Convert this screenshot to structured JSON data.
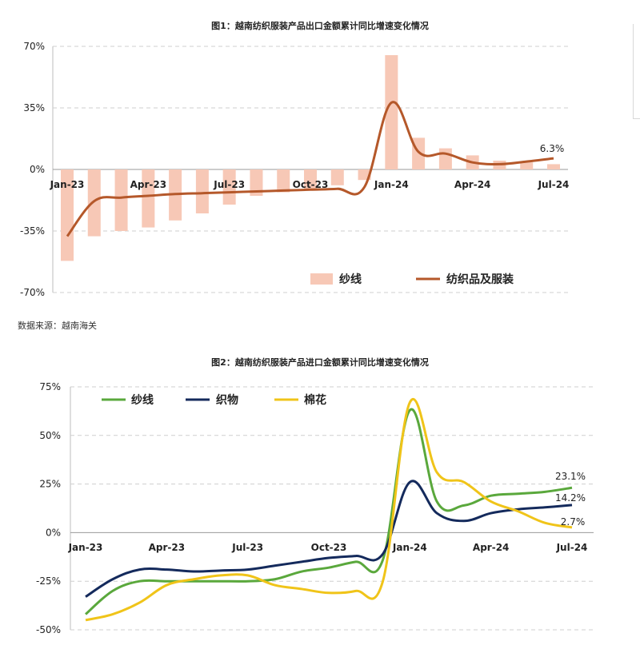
{
  "charts": [
    {
      "type": "bar+line",
      "title": "图1：越南纺织服装产品出口金额累计同比增速变化情况",
      "x_labels": [
        "Jan-23",
        "Apr-23",
        "Jul-23",
        "Oct-23",
        "Jan-24",
        "Apr-24",
        "Jul-24"
      ],
      "y_ticks": [
        "70%",
        "35%",
        "0%",
        "-35%",
        "-70%"
      ],
      "ylim": [
        -70,
        70
      ],
      "grid": true,
      "legend_position": "bottom-right",
      "annotation": "6.3%",
      "source": "数据来源：越南海关"
    },
    {
      "type": "line",
      "title": "图2：越南纺织服装产品进口金额累计同比增速变化情况",
      "x_labels": [
        "Jan-23",
        "Apr-23",
        "Jul-23",
        "Oct-23",
        "Jan-24",
        "Apr-24",
        "Jul-24"
      ],
      "y_ticks": [
        "75%",
        "50%",
        "25%",
        "0%",
        "-25%",
        "-50%"
      ],
      "ylim": [
        -50,
        75
      ],
      "grid": true,
      "legend_position": "top-left",
      "annotations": [
        "23.1%",
        "14.2%",
        "2.7%"
      ]
    }
  ],
  "chart_data": [
    {
      "type": "bar",
      "x": [
        "Jan-23",
        "Feb-23",
        "Mar-23",
        "Apr-23",
        "May-23",
        "Jun-23",
        "Jul-23",
        "Aug-23",
        "Sep-23",
        "Oct-23",
        "Nov-23",
        "Dec-23",
        "Jan-24",
        "Feb-24",
        "Mar-24",
        "Apr-24",
        "May-24",
        "Jun-24",
        "Jul-24"
      ],
      "ylim": [
        -70,
        70
      ],
      "series": [
        {
          "name": "纱线",
          "color": "#f7c8b6",
          "kind": "bar",
          "values": [
            -52,
            -38,
            -35,
            -33,
            -29,
            -25,
            -20,
            -15,
            -13,
            -12,
            -9,
            -6,
            65,
            18,
            12,
            8,
            5,
            4,
            3
          ]
        },
        {
          "name": "纺织品及服装",
          "color": "#b5582a",
          "kind": "line",
          "values": [
            -38,
            -18,
            -16,
            -15,
            -14,
            -13.5,
            -13,
            -12.5,
            -12,
            -11.5,
            -11,
            -10,
            38,
            10,
            9,
            4,
            3,
            4.5,
            6.3
          ]
        }
      ]
    },
    {
      "type": "line",
      "x": [
        "Jan-23",
        "Feb-23",
        "Mar-23",
        "Apr-23",
        "May-23",
        "Jun-23",
        "Jul-23",
        "Aug-23",
        "Sep-23",
        "Oct-23",
        "Nov-23",
        "Dec-23",
        "Jan-24",
        "Feb-24",
        "Mar-24",
        "Apr-24",
        "May-24",
        "Jun-24",
        "Jul-24"
      ],
      "ylim": [
        -50,
        75
      ],
      "series": [
        {
          "name": "纱线",
          "color": "#5aa83c",
          "values": [
            -42,
            -30,
            -25,
            -25,
            -25,
            -25,
            -25,
            -24,
            -20,
            -18,
            -15,
            -14,
            63,
            16,
            14,
            19,
            20,
            21,
            23.1
          ]
        },
        {
          "name": "织物",
          "color": "#142a5c",
          "values": [
            -33,
            -24,
            -19,
            -19,
            -20,
            -19.5,
            -19,
            -17,
            -15,
            -13,
            -12,
            -11,
            26,
            10,
            6,
            10,
            12,
            13,
            14.2
          ]
        },
        {
          "name": "棉花",
          "color": "#f0c419",
          "values": [
            -45,
            -42,
            -36,
            -27,
            -24,
            -22,
            -22,
            -27,
            -29,
            -31,
            -30,
            -25,
            67,
            31,
            26,
            16,
            11,
            5,
            2.7
          ]
        }
      ]
    }
  ]
}
